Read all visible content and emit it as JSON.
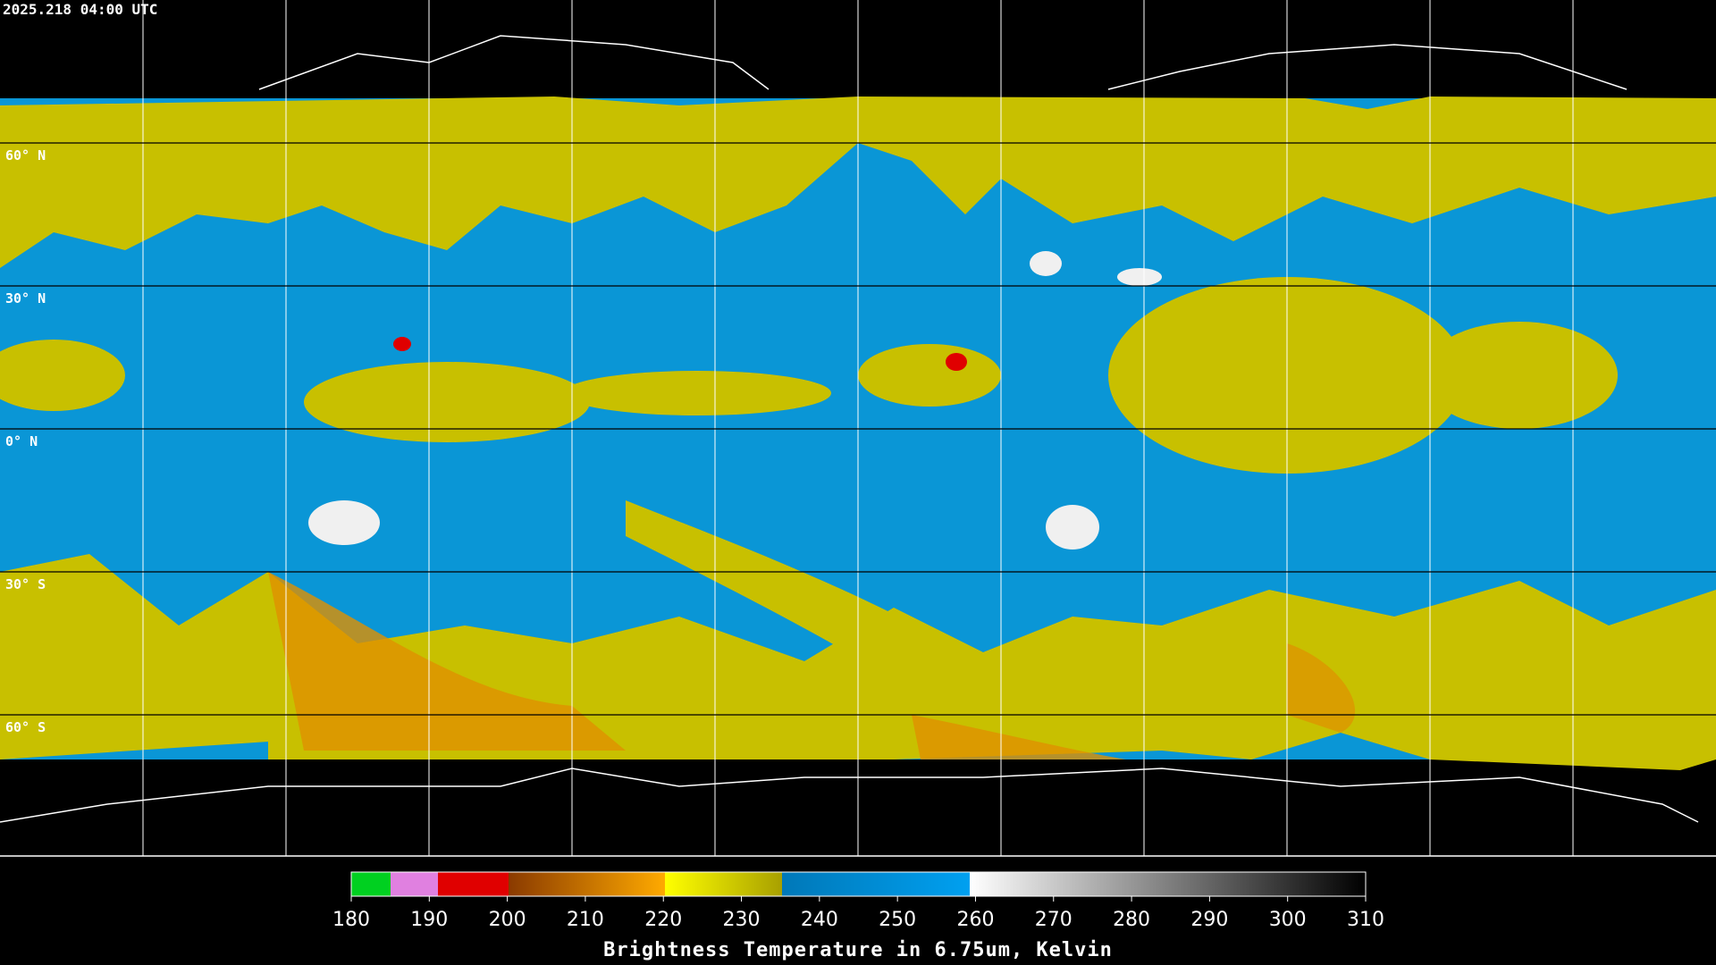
{
  "timestamp": "2025.218 04:00 UTC",
  "grid": {
    "lat_labels": [
      "60° N",
      "30° N",
      "0° N",
      "30° S",
      "60° S"
    ]
  },
  "colorbar": {
    "ticks": [
      180,
      190,
      200,
      210,
      220,
      230,
      240,
      250,
      260,
      270,
      280,
      290,
      300,
      310
    ],
    "title": "Brightness Temperature in 6.75um, Kelvin"
  }
}
